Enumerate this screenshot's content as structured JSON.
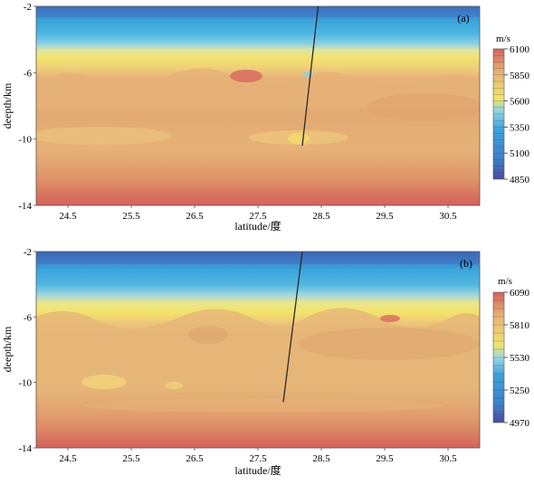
{
  "chart_data": [
    {
      "type": "heatmap",
      "panel_label": "(a)",
      "xlabel": "latitude/度",
      "ylabel": "deepth/km",
      "xlim": [
        24.0,
        31.0
      ],
      "ylim": [
        -14,
        -2
      ],
      "x_ticks": [
        "24.5",
        "25.5",
        "26.5",
        "27.5",
        "28.5",
        "29.5",
        "30.5"
      ],
      "x_tick_values": [
        24.5,
        25.5,
        26.5,
        27.5,
        28.5,
        29.5,
        30.5
      ],
      "y_ticks": [
        "-2",
        "-6",
        "-10",
        "-14"
      ],
      "y_tick_values": [
        -2,
        -6,
        -10,
        -14
      ],
      "colorbar": {
        "unit": "m/s",
        "labels": [
          "6100",
          "5850",
          "5600",
          "5350",
          "5100",
          "4850"
        ],
        "values": [
          6100,
          5850,
          5600,
          5350,
          5100,
          4850
        ]
      },
      "profile_line": {
        "x": [
          28.2,
          28.45
        ],
        "y": [
          -10.4,
          -2.0
        ]
      }
    },
    {
      "type": "heatmap",
      "panel_label": "(b)",
      "xlabel": "latitude/度",
      "ylabel": "deepth/km",
      "xlim": [
        24.0,
        31.0
      ],
      "ylim": [
        -14,
        -2
      ],
      "x_ticks": [
        "24.5",
        "25.5",
        "26.5",
        "27.5",
        "28.5",
        "29.5",
        "30.5"
      ],
      "x_tick_values": [
        24.5,
        25.5,
        26.5,
        27.5,
        28.5,
        29.5,
        30.5
      ],
      "y_ticks": [
        "-2",
        "-6",
        "-10",
        "-14"
      ],
      "y_tick_values": [
        -2,
        -6,
        -10,
        -14
      ],
      "colorbar": {
        "unit": "m/s",
        "labels": [
          "6090",
          "5810",
          "5530",
          "5250",
          "4970"
        ],
        "values": [
          6090,
          5810,
          5530,
          5250,
          4970
        ]
      },
      "profile_line": {
        "x": [
          27.9,
          28.2
        ],
        "y": [
          -11.2,
          -2.0
        ]
      }
    }
  ],
  "colors": {
    "blue_dark": "#2b4f9e",
    "blue": "#3aa3dc",
    "cyan": "#7fd3e6",
    "yellow": "#f3e36a",
    "light_orange": "#edc27e",
    "orange": "#e4ad72",
    "red": "#d4625a"
  }
}
